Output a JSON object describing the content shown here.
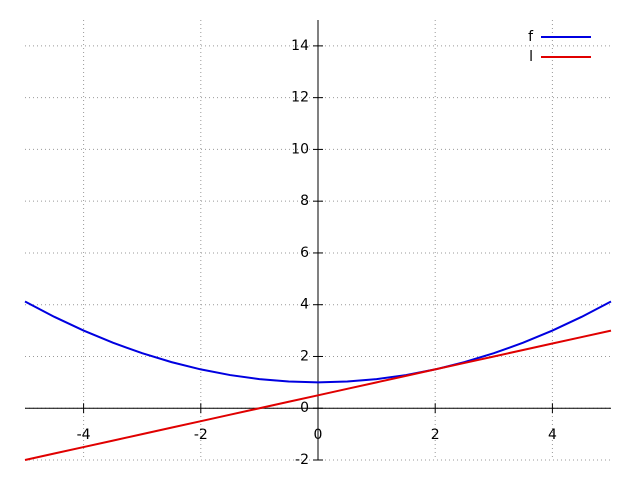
{
  "chart_data": {
    "type": "line",
    "x": [
      -5,
      -4.5,
      -4,
      -3.5,
      -3,
      -2.5,
      -2,
      -1.5,
      -1,
      -0.5,
      0,
      0.5,
      1,
      1.5,
      2,
      2.5,
      3,
      3.5,
      4,
      4.5,
      5
    ],
    "series": [
      {
        "name": "f",
        "color": "#0000e0",
        "values": [
          4.125,
          3.53125,
          3,
          2.53125,
          2.125,
          1.78125,
          1.5,
          1.28125,
          1.125,
          1.03125,
          1,
          1.03125,
          1.125,
          1.28125,
          1.5,
          1.78125,
          2.125,
          2.53125,
          3,
          3.53125,
          4.125
        ]
      },
      {
        "name": "l",
        "color": "#e00000",
        "values": [
          -2,
          -1.75,
          -1.5,
          -1.25,
          -1,
          -0.75,
          -0.5,
          -0.25,
          0,
          0.25,
          0.5,
          0.75,
          1,
          1.25,
          1.5,
          1.75,
          2,
          2.25,
          2.5,
          2.75,
          3
        ]
      }
    ],
    "xlim": [
      -5,
      5
    ],
    "ylim": [
      -2,
      15
    ],
    "xticks": [
      -4,
      -2,
      0,
      2,
      4
    ],
    "yticks": [
      -2,
      0,
      2,
      4,
      6,
      8,
      10,
      12,
      14
    ],
    "grid": true,
    "legend": "top-right"
  }
}
